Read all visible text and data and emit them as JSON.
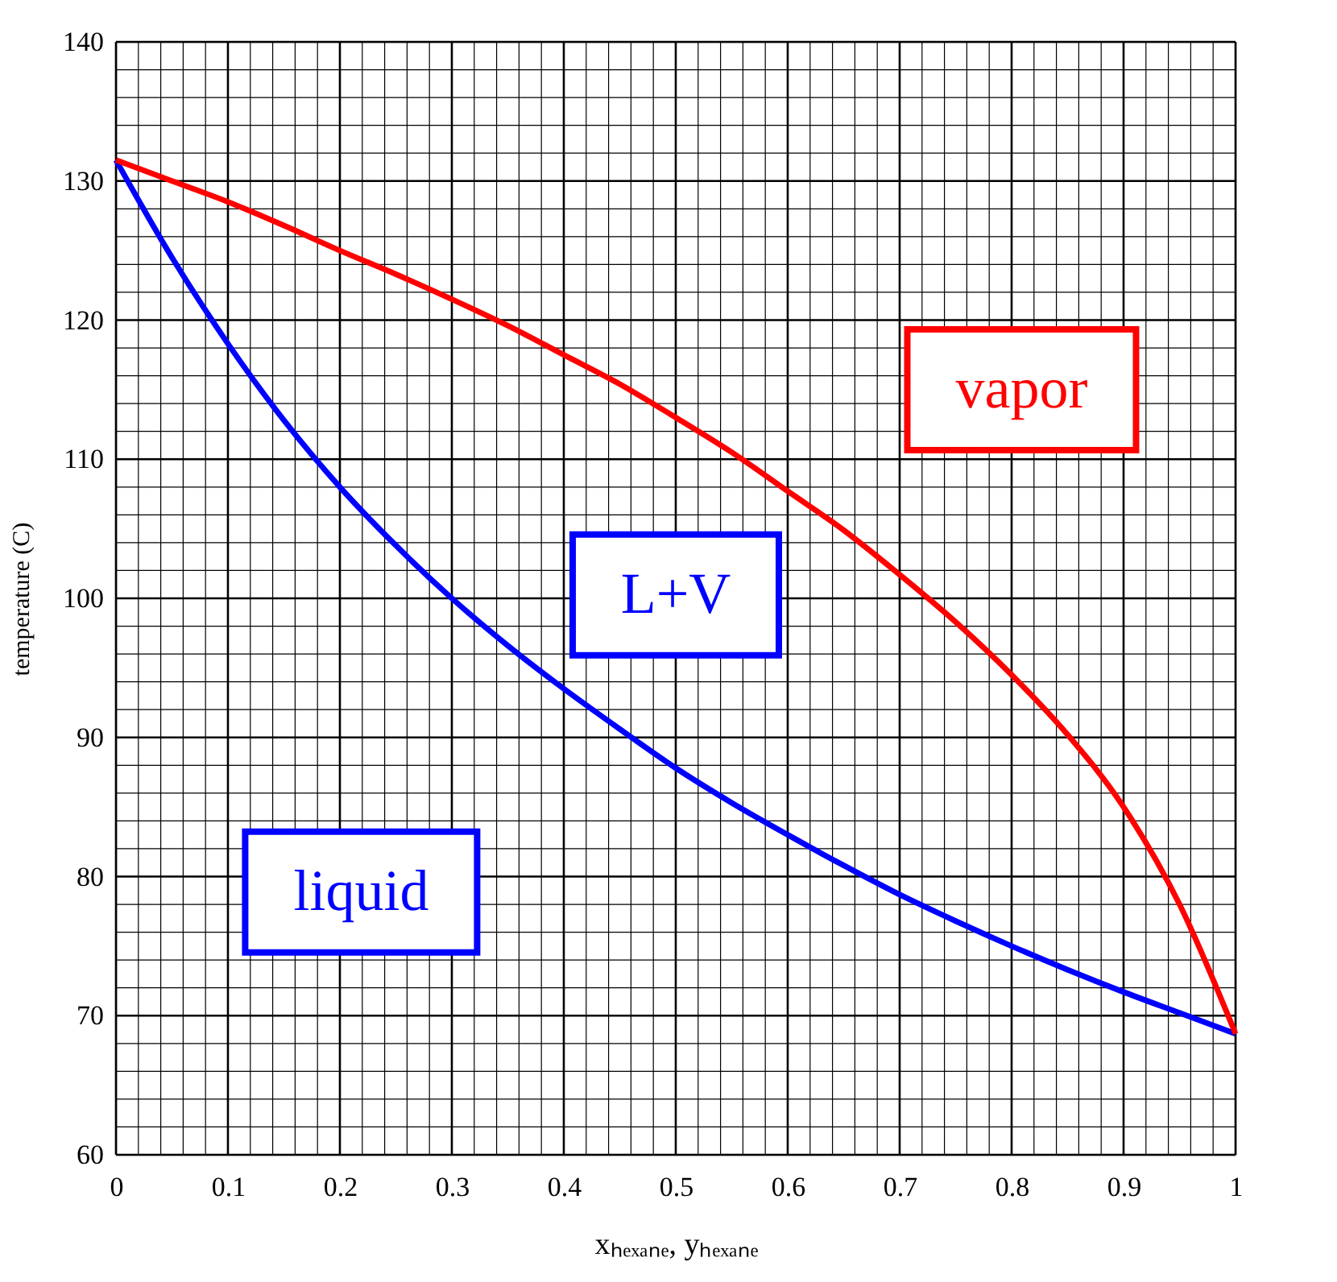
{
  "chart_data": {
    "type": "line",
    "xlabel": "xₕₑₓₐₙₑ, yₕₑₓₐₙₑ",
    "ylabel": "temperature (C)",
    "xlim": [
      0,
      1
    ],
    "ylim": [
      60,
      140
    ],
    "xticks": [
      0,
      {
        "value": 0.02,
        "label": null
      },
      {
        "value": 0.04,
        "label": null
      },
      {
        "value": 0.06,
        "label": null
      },
      {
        "value": 0.08,
        "label": null
      },
      0.1,
      {
        "value": 0.12,
        "label": null
      },
      {
        "value": 0.14,
        "label": null
      },
      {
        "value": 0.16,
        "label": null
      },
      {
        "value": 0.18,
        "label": null
      },
      0.2,
      {
        "value": 0.22,
        "label": null
      },
      {
        "value": 0.24,
        "label": null
      },
      {
        "value": 0.26,
        "label": null
      },
      {
        "value": 0.28,
        "label": null
      },
      0.3,
      {
        "value": 0.32,
        "label": null
      },
      {
        "value": 0.34,
        "label": null
      },
      {
        "value": 0.36,
        "label": null
      },
      {
        "value": 0.38,
        "label": null
      },
      0.4,
      {
        "value": 0.42,
        "label": null
      },
      {
        "value": 0.44,
        "label": null
      },
      {
        "value": 0.46,
        "label": null
      },
      {
        "value": 0.48,
        "label": null
      },
      0.5,
      {
        "value": 0.52,
        "label": null
      },
      {
        "value": 0.54,
        "label": null
      },
      {
        "value": 0.56,
        "label": null
      },
      {
        "value": 0.58,
        "label": null
      },
      0.6,
      {
        "value": 0.62,
        "label": null
      },
      {
        "value": 0.64,
        "label": null
      },
      {
        "value": 0.66,
        "label": null
      },
      {
        "value": 0.68,
        "label": null
      },
      0.7,
      {
        "value": 0.72,
        "label": null
      },
      {
        "value": 0.74,
        "label": null
      },
      {
        "value": 0.76,
        "label": null
      },
      {
        "value": 0.78,
        "label": null
      },
      0.8,
      {
        "value": 0.82,
        "label": null
      },
      {
        "value": 0.84,
        "label": null
      },
      {
        "value": 0.86,
        "label": null
      },
      {
        "value": 0.88,
        "label": null
      },
      0.9,
      {
        "value": 0.92,
        "label": null
      },
      {
        "value": 0.94,
        "label": null
      },
      {
        "value": 0.96,
        "label": null
      },
      {
        "value": 0.98,
        "label": null
      },
      1
    ],
    "yticks": [
      60,
      {
        "value": 62,
        "label": null
      },
      {
        "value": 64,
        "label": null
      },
      {
        "value": 66,
        "label": null
      },
      {
        "value": 68,
        "label": null
      },
      70,
      {
        "value": 72,
        "label": null
      },
      {
        "value": 74,
        "label": null
      },
      {
        "value": 76,
        "label": null
      },
      {
        "value": 78,
        "label": null
      },
      80,
      {
        "value": 82,
        "label": null
      },
      {
        "value": 84,
        "label": null
      },
      {
        "value": 86,
        "label": null
      },
      {
        "value": 88,
        "label": null
      },
      90,
      {
        "value": 92,
        "label": null
      },
      {
        "value": 94,
        "label": null
      },
      {
        "value": 96,
        "label": null
      },
      {
        "value": 98,
        "label": null
      },
      100,
      {
        "value": 102,
        "label": null
      },
      {
        "value": 104,
        "label": null
      },
      {
        "value": 106,
        "label": null
      },
      {
        "value": 108,
        "label": null
      },
      110,
      {
        "value": 112,
        "label": null
      },
      {
        "value": 114,
        "label": null
      },
      {
        "value": 116,
        "label": null
      },
      {
        "value": 118,
        "label": null
      },
      120,
      {
        "value": 122,
        "label": null
      },
      {
        "value": 124,
        "label": null
      },
      {
        "value": 126,
        "label": null
      },
      {
        "value": 128,
        "label": null
      },
      130,
      {
        "value": 132,
        "label": null
      },
      {
        "value": 134,
        "label": null
      },
      {
        "value": 136,
        "label": null
      },
      {
        "value": 138,
        "label": null
      },
      140
    ],
    "grid": true,
    "marker": "none",
    "line_style": "solid",
    "x": [
      0,
      0.05,
      0.1,
      0.15,
      0.2,
      0.25,
      0.3,
      0.35,
      0.4,
      0.45,
      0.5,
      0.55,
      0.6,
      0.65,
      0.7,
      0.75,
      0.8,
      0.85,
      0.9,
      0.95,
      1
    ],
    "series": [
      {
        "color": "#0000ff",
        "values": [
          131.5,
          124.5,
          118.3,
          112.8,
          108,
          103.8,
          100,
          96.6,
          93.5,
          90.6,
          87.8,
          85.3,
          83,
          80.8,
          78.7,
          76.8,
          75,
          73.3,
          71.7,
          70.2,
          68.7
        ]
      },
      {
        "color": "#ff0000",
        "values": [
          131.5,
          130,
          128.5,
          126.8,
          125,
          123.3,
          121.5,
          119.6,
          117.5,
          115.4,
          113,
          110.5,
          107.7,
          104.9,
          101.7,
          98.3,
          94.5,
          90.2,
          85,
          78,
          68.7
        ]
      }
    ],
    "annotations": [
      "vapor",
      "L+V",
      "liquid"
    ]
  }
}
